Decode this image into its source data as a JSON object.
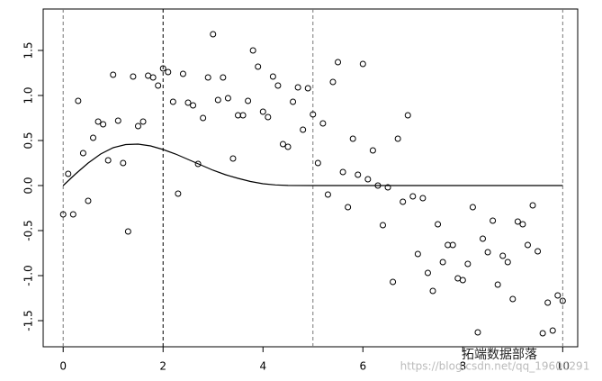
{
  "chart_data": {
    "type": "scatter",
    "xlim": [
      -0.4,
      10.3
    ],
    "ylim": [
      -1.79,
      1.96
    ],
    "xticks": [
      0,
      2,
      4,
      6,
      8,
      10
    ],
    "yticks": [
      {
        "value": -1.5,
        "label": "-1.5"
      },
      {
        "value": -1,
        "label": "-1.0"
      },
      {
        "value": -0.5,
        "label": "-0.5"
      },
      {
        "value": 0,
        "label": "0.0"
      },
      {
        "value": 0.5,
        "label": "0.5"
      },
      {
        "value": 1,
        "label": "1.0"
      },
      {
        "value": 1.5,
        "label": "1.5"
      }
    ],
    "vlines": [
      0,
      2,
      5,
      10
    ],
    "vline_colors": [
      "#777777",
      "#000000",
      "#777777",
      "#777777"
    ],
    "series": [
      {
        "type": "scatter",
        "color": "#000000",
        "x": [
          0,
          0.1,
          0.2,
          0.3,
          0.4,
          0.5,
          0.6,
          0.7,
          0.8,
          0.9,
          1,
          1.1,
          1.2,
          1.3,
          1.4,
          1.5,
          1.6,
          1.7,
          1.8,
          1.9,
          2,
          2.1,
          2.2,
          2.3,
          2.4,
          2.5,
          2.6,
          2.7,
          2.8,
          2.9,
          3,
          3.1,
          3.2,
          3.3,
          3.4,
          3.5,
          3.6,
          3.7,
          3.8,
          3.9,
          4,
          4.1,
          4.2,
          4.3,
          4.4,
          4.5,
          4.6,
          4.7,
          4.8,
          4.9,
          5,
          5.1,
          5.2,
          5.3,
          5.4,
          5.5,
          5.6,
          5.7,
          5.8,
          5.9,
          6,
          6.1,
          6.2,
          6.3,
          6.4,
          6.5,
          6.6,
          6.7,
          6.8,
          6.9,
          7,
          7.1,
          7.2,
          7.3,
          7.4,
          7.5,
          7.6,
          7.7,
          7.8,
          7.9,
          8,
          8.1,
          8.2,
          8.3,
          8.4,
          8.5,
          8.6,
          8.7,
          8.8,
          8.9,
          9,
          9.1,
          9.2,
          9.3,
          9.4,
          9.5,
          9.6,
          9.7,
          9.8,
          9.9,
          10
        ],
        "values": [
          -0.32,
          0.13,
          -0.32,
          0.94,
          0.36,
          -0.17,
          0.53,
          0.71,
          0.68,
          0.28,
          1.23,
          0.72,
          0.25,
          -0.51,
          1.21,
          0.66,
          0.71,
          1.22,
          1.2,
          1.11,
          1.3,
          1.26,
          0.93,
          -0.09,
          1.24,
          0.92,
          0.89,
          0.24,
          0.75,
          1.2,
          1.68,
          0.95,
          1.2,
          0.97,
          0.3,
          0.78,
          0.78,
          0.94,
          1.5,
          1.32,
          0.82,
          0.76,
          1.21,
          1.11,
          0.46,
          0.43,
          0.93,
          1.09,
          0.62,
          1.08,
          0.79,
          0.25,
          0.69,
          -0.1,
          1.15,
          1.37,
          0.15,
          -0.24,
          0.52,
          0.12,
          1.35,
          0.07,
          0.39,
          0,
          -0.44,
          -0.02,
          -1.07,
          0.52,
          -0.18,
          0.78,
          -0.12,
          -0.76,
          -0.14,
          -0.97,
          -1.17,
          -0.43,
          -0.85,
          -0.66,
          -0.66,
          -1.03,
          -1.05,
          -0.87,
          -0.24,
          -1.63,
          -0.59,
          -0.74,
          -0.39,
          -1.1,
          -0.78,
          -0.85,
          -1.26,
          -0.4,
          -0.43,
          -0.66,
          -0.22,
          -0.73,
          -1.64,
          -1.3,
          -1.61,
          -1.22,
          -1.28
        ]
      },
      {
        "type": "line",
        "color": "#000000",
        "x": [
          0,
          0.25,
          0.5,
          0.75,
          1,
          1.25,
          1.5,
          1.75,
          2,
          2.25,
          2.5,
          2.75,
          3,
          3.25,
          3.5,
          3.75,
          4,
          4.25,
          4.5,
          5,
          10
        ],
        "values": [
          0,
          0.13,
          0.25,
          0.35,
          0.42,
          0.455,
          0.46,
          0.44,
          0.4,
          0.35,
          0.29,
          0.23,
          0.17,
          0.12,
          0.08,
          0.045,
          0.02,
          0.007,
          0.001,
          0,
          0
        ]
      }
    ]
  },
  "watermark": {
    "logo_text": "拓端数据部落",
    "url": "https://blog.csdn.net/qq_19600291"
  }
}
